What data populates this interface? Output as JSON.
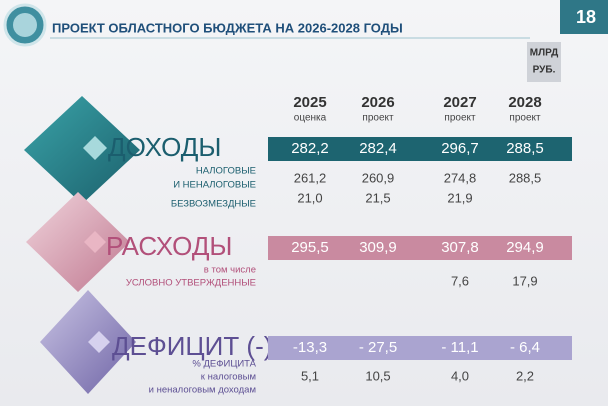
{
  "header": {
    "title": "ПРОЕКТ ОБЛАСТНОГО БЮДЖЕТА НА 2026-2028 ГОДЫ",
    "page": "18",
    "unit": [
      "МЛРД",
      "РУБ."
    ]
  },
  "columns": [
    {
      "year": "2025",
      "note": "оценка"
    },
    {
      "year": "2026",
      "note": "проект"
    },
    {
      "year": "2027",
      "note": "проект"
    },
    {
      "year": "2028",
      "note": "проект"
    }
  ],
  "sections": [
    {
      "name": "ДОХОДЫ",
      "total": [
        "282,2",
        "282,4",
        "296,7",
        "288,5"
      ],
      "rows": [
        {
          "label": [
            "НАЛОГОВЫЕ",
            "И НЕНАЛОГОВЫЕ"
          ],
          "values": [
            "261,2",
            "260,9",
            "274,8",
            "288,5"
          ]
        },
        {
          "label": [
            "БЕЗВОЗМЕЗДНЫЕ"
          ],
          "values": [
            "21,0",
            "21,5",
            "21,9",
            null
          ]
        }
      ]
    },
    {
      "name": "РАСХОДЫ",
      "total": [
        "295,5",
        "309,9",
        "307,8",
        "294,9"
      ],
      "rows": [
        {
          "label": [
            "в том числе",
            "УСЛОВНО УТВЕРЖДЕННЫЕ"
          ],
          "values": [
            null,
            null,
            "7,6",
            "17,9"
          ]
        }
      ]
    },
    {
      "name": "ДЕФИЦИТ (-)",
      "total": [
        "-13,3",
        "- 27,5",
        "- 11,1",
        "- 6,4"
      ],
      "rows": [
        {
          "label": [
            "% ДЕФИЦИТА",
            "к налоговым",
            "и неналоговым доходам"
          ],
          "values": [
            "5,1",
            "10,5",
            "4,0",
            "2,2"
          ]
        }
      ]
    }
  ]
}
